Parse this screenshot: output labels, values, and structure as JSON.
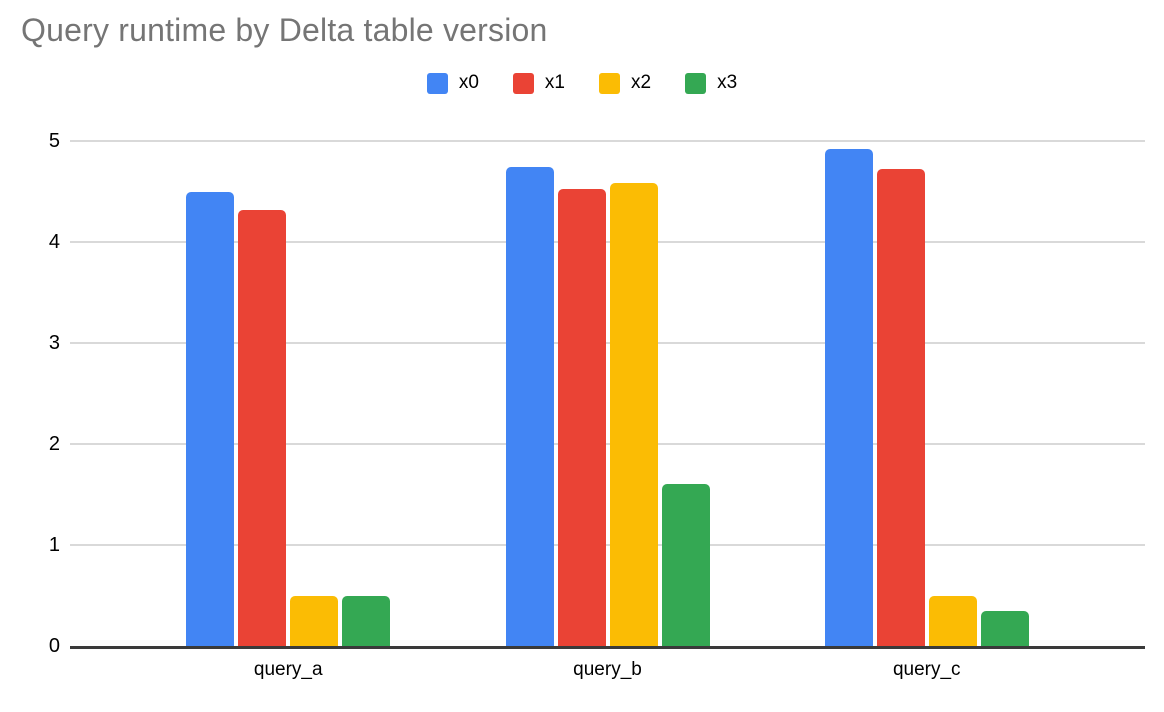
{
  "title": "Query runtime by Delta table version",
  "chart_data": {
    "type": "bar",
    "title": "Query runtime by Delta table version",
    "categories": [
      "query_a",
      "query_b",
      "query_c"
    ],
    "series": [
      {
        "name": "x0",
        "color": "#4285F4",
        "values": [
          4.5,
          4.74,
          4.92
        ]
      },
      {
        "name": "x1",
        "color": "#EA4335",
        "values": [
          4.32,
          4.52,
          4.72
        ]
      },
      {
        "name": "x2",
        "color": "#FBBC04",
        "values": [
          0.5,
          4.58,
          0.5
        ]
      },
      {
        "name": "x3",
        "color": "#34A853",
        "values": [
          0.5,
          1.6,
          0.35
        ]
      }
    ],
    "xlabel": "",
    "ylabel": "",
    "ylim": [
      0,
      5
    ],
    "yticks": [
      0,
      1,
      2,
      3,
      4,
      5
    ],
    "grid": true,
    "legend_position": "top-center"
  },
  "colors": {
    "title_text": "#757575",
    "axis_text": "#000000",
    "gridline": "#d9d9d9",
    "axis_line": "#3a3a3a",
    "background": "#ffffff"
  }
}
